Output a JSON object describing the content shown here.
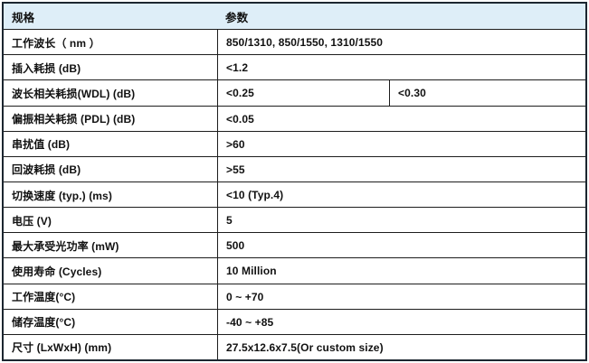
{
  "table": {
    "header": {
      "col1": "规格",
      "col2": "参数"
    },
    "rows": [
      {
        "label": "工作波长（ nm ）",
        "value": "850/1310, 850/1550, 1310/1550"
      },
      {
        "label": "插入耗损  (dB)",
        "value": "<1.2"
      },
      {
        "label": "波长相关耗损(WDL) (dB)",
        "value": "<0.25",
        "value2": "<0.30"
      },
      {
        "label": "偏振相关耗损  (PDL) (dB)",
        "value": "<0.05"
      },
      {
        "label": "串扰值  (dB)",
        "value": ">60"
      },
      {
        "label": "回波耗损  (dB)",
        "value": ">55"
      },
      {
        "label": "切换速度  (typ.) (ms)",
        "value": "<10 (Typ.4)"
      },
      {
        "label": "电压  (V)",
        "value": "5"
      },
      {
        "label": "最大承受光功率  (mW)",
        "value": "500"
      },
      {
        "label": "使用寿命  (Cycles)",
        "value": "10 Million"
      },
      {
        "label": "工作温度(°C)",
        "value": "0 ~ +70"
      },
      {
        "label": "储存温度(°C)",
        "value": "-40 ~ +85"
      },
      {
        "label": "尺寸  (LxWxH) (mm)",
        "value": "27.5x12.6x7.5(Or custom size)"
      }
    ],
    "colors": {
      "header_bg": "#deeef8",
      "outer_border": "#1c2630",
      "inner_border": "#1d1d1d",
      "text": "#111111"
    }
  }
}
